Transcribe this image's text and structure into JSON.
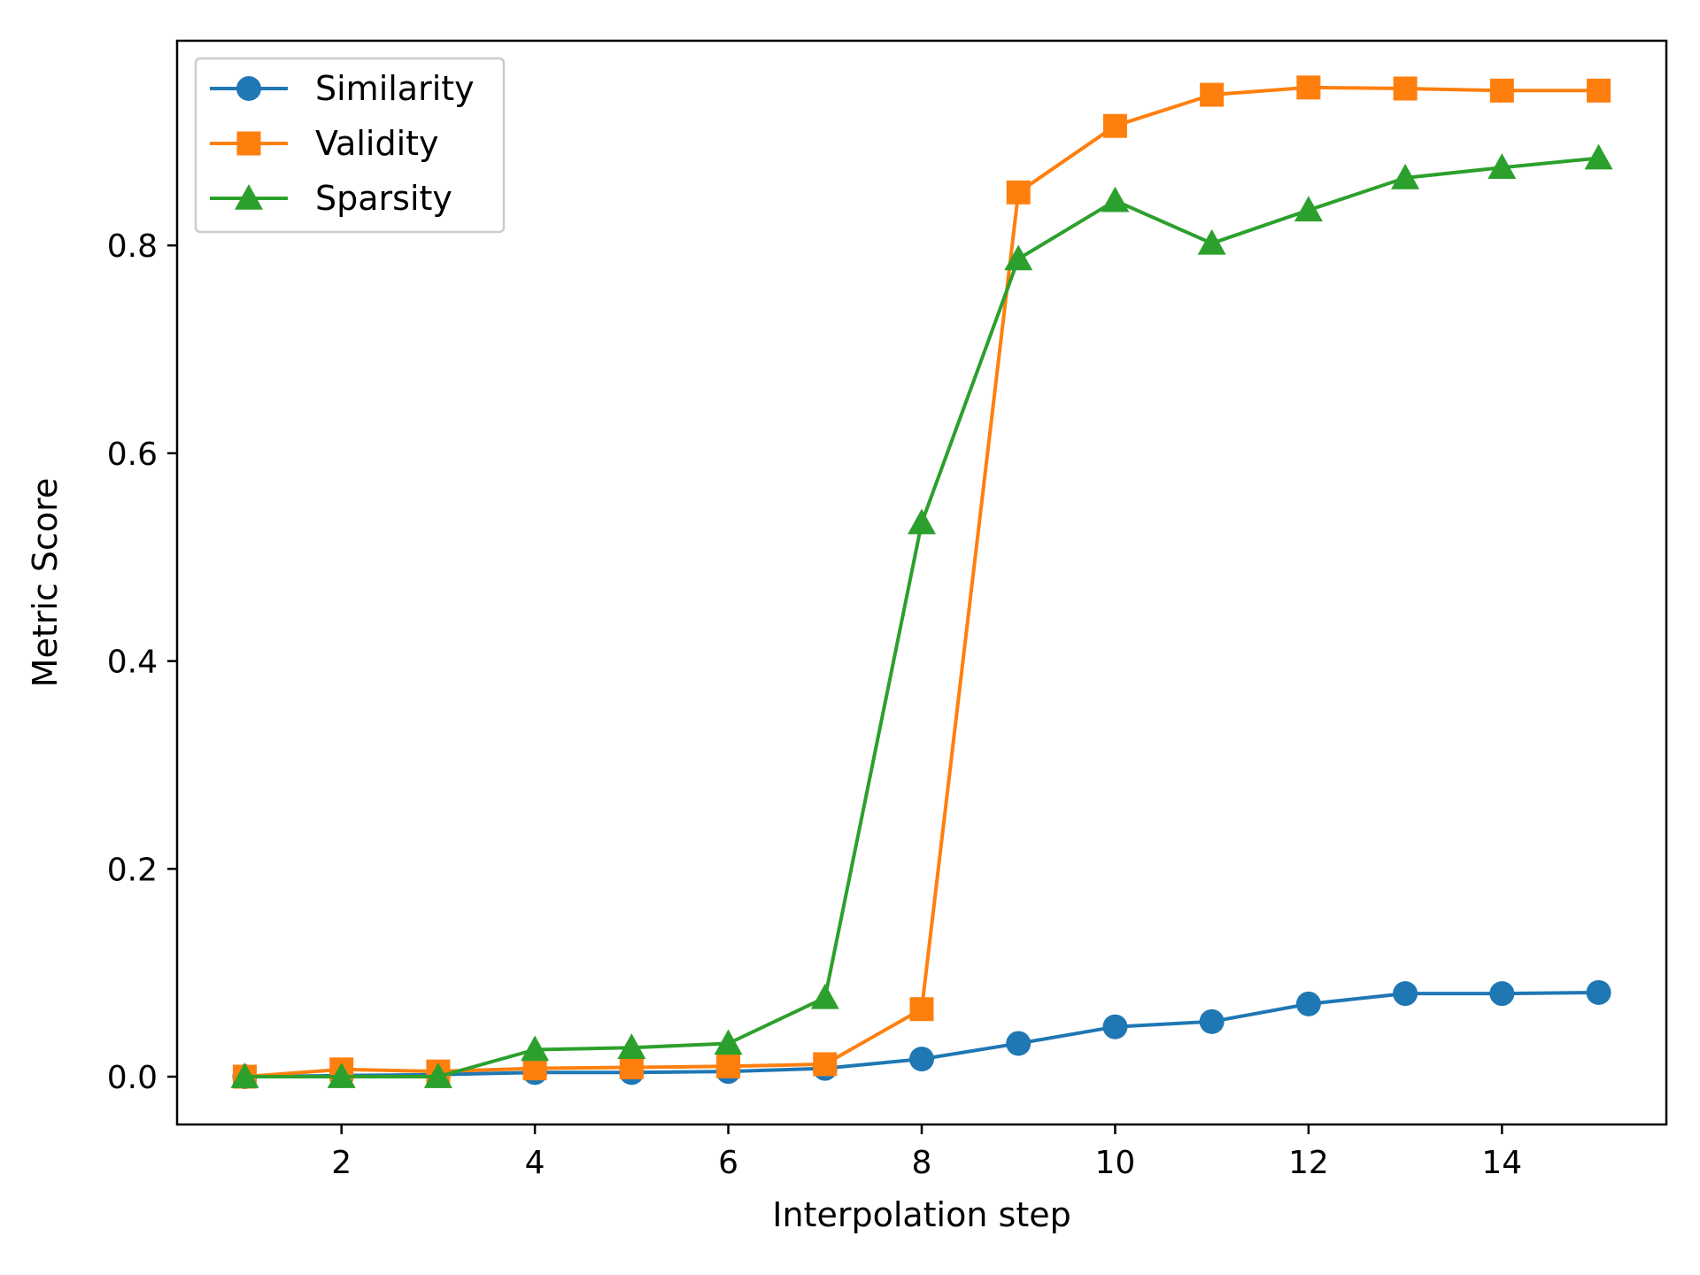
{
  "chart_data": {
    "type": "line",
    "title": "",
    "xlabel": "Interpolation step",
    "ylabel": "Metric Score",
    "xlim": [
      0.3,
      15.7
    ],
    "ylim": [
      -0.046,
      0.997
    ],
    "xticks": [
      2,
      4,
      6,
      8,
      10,
      12,
      14
    ],
    "xtick_labels": [
      "2",
      "4",
      "6",
      "8",
      "10",
      "12",
      "14"
    ],
    "yticks": [
      0.0,
      0.2,
      0.4,
      0.6,
      0.8
    ],
    "ytick_labels": [
      "0.0",
      "0.2",
      "0.4",
      "0.6",
      "0.8"
    ],
    "grid": false,
    "legend_position": "top-left",
    "x": [
      1,
      2,
      3,
      4,
      5,
      6,
      7,
      8,
      9,
      10,
      11,
      12,
      13,
      14,
      15
    ],
    "series": [
      {
        "name": "Similarity",
        "color": "#1f77b4",
        "marker": "circle",
        "values": [
          0.0,
          0.001,
          0.002,
          0.004,
          0.004,
          0.005,
          0.008,
          0.017,
          0.032,
          0.048,
          0.053,
          0.07,
          0.08,
          0.08,
          0.081
        ]
      },
      {
        "name": "Validity",
        "color": "#ff7f0e",
        "marker": "square",
        "values": [
          0.0,
          0.007,
          0.005,
          0.008,
          0.009,
          0.01,
          0.012,
          0.065,
          0.851,
          0.915,
          0.945,
          0.952,
          0.951,
          0.949,
          0.949
        ]
      },
      {
        "name": "Sparsity",
        "color": "#2ca02c",
        "marker": "triangle",
        "values": [
          0.0,
          0.0,
          0.0,
          0.026,
          0.028,
          0.032,
          0.076,
          0.533,
          0.787,
          0.843,
          0.802,
          0.834,
          0.865,
          0.875,
          0.884
        ]
      }
    ]
  }
}
